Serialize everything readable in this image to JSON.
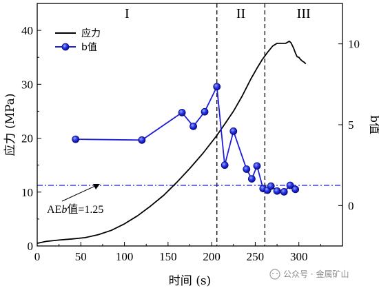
{
  "chart_data": {
    "type": "line",
    "x_axis": {
      "label": "时间 (s)",
      "range": [
        0,
        350
      ],
      "ticks": [
        0,
        50,
        100,
        150,
        200,
        250,
        300
      ]
    },
    "y_axis_left": {
      "label": "应力 (MPa)",
      "range": [
        0,
        45
      ],
      "ticks": [
        0,
        10,
        20,
        30,
        40
      ]
    },
    "y_axis_right": {
      "label": "b值",
      "range": [
        -2.5,
        12.5
      ],
      "ticks": [
        0,
        5,
        10
      ]
    },
    "grid": false,
    "legend_position": "top-left",
    "regions": [
      {
        "label": "I",
        "x_start": 0,
        "x_end": 206
      },
      {
        "label": "II",
        "x_start": 206,
        "x_end": 261
      },
      {
        "label": "III",
        "x_start": 261,
        "x_end": 350
      }
    ],
    "boundaries": [
      206,
      261
    ],
    "series": [
      {
        "name": "应力",
        "axis": "left",
        "color": "#000000",
        "points": [
          [
            0,
            0.5
          ],
          [
            10,
            0.85
          ],
          [
            25,
            1.1
          ],
          [
            40,
            1.3
          ],
          [
            55,
            1.55
          ],
          [
            70,
            2.1
          ],
          [
            85,
            2.9
          ],
          [
            100,
            4.1
          ],
          [
            115,
            5.6
          ],
          [
            130,
            7.4
          ],
          [
            145,
            9.4
          ],
          [
            160,
            11.8
          ],
          [
            175,
            14.4
          ],
          [
            190,
            17.2
          ],
          [
            205,
            20.3
          ],
          [
            215,
            22.6
          ],
          [
            225,
            25.0
          ],
          [
            235,
            27.8
          ],
          [
            245,
            31.0
          ],
          [
            252,
            33.0
          ],
          [
            258,
            34.6
          ],
          [
            264,
            35.9
          ],
          [
            270,
            37.1
          ],
          [
            275,
            37.6
          ],
          [
            280,
            37.6
          ],
          [
            285,
            37.6
          ],
          [
            289,
            38.0
          ],
          [
            291,
            37.7
          ],
          [
            294,
            36.7
          ],
          [
            296,
            35.8
          ],
          [
            298,
            35.1
          ],
          [
            300,
            35.0
          ],
          [
            302,
            34.6
          ],
          [
            304,
            34.3
          ],
          [
            306,
            34.1
          ],
          [
            308,
            33.8
          ]
        ]
      },
      {
        "name": "b值",
        "axis": "right",
        "color": "#1f1fd6",
        "marker": "circle",
        "points": [
          [
            44,
            4.1
          ],
          [
            120,
            4.05
          ],
          [
            166,
            5.75
          ],
          [
            179,
            4.9
          ],
          [
            192,
            5.8
          ],
          [
            206,
            7.35
          ],
          [
            215,
            2.5
          ],
          [
            225,
            4.6
          ],
          [
            240,
            2.25
          ],
          [
            246,
            1.65
          ],
          [
            252,
            2.45
          ],
          [
            259,
            1.05
          ],
          [
            264,
            0.95
          ],
          [
            268,
            1.2
          ],
          [
            275,
            0.9
          ],
          [
            283,
            0.85
          ],
          [
            290,
            1.25
          ],
          [
            296,
            1.0
          ]
        ]
      }
    ],
    "reference_line": {
      "axis": "left",
      "y": 11.25,
      "style": "dash-dot",
      "color": "#1f1fd6"
    },
    "annotation": {
      "prefix": "AE",
      "italic": "b",
      "suffix": "值=1.25",
      "arrow_to": [
        70,
        11.25
      ]
    }
  },
  "colors": {
    "stress": "#000000",
    "bvalue": "#1f1fd6"
  },
  "watermark": "公众号 · 金属矿山"
}
